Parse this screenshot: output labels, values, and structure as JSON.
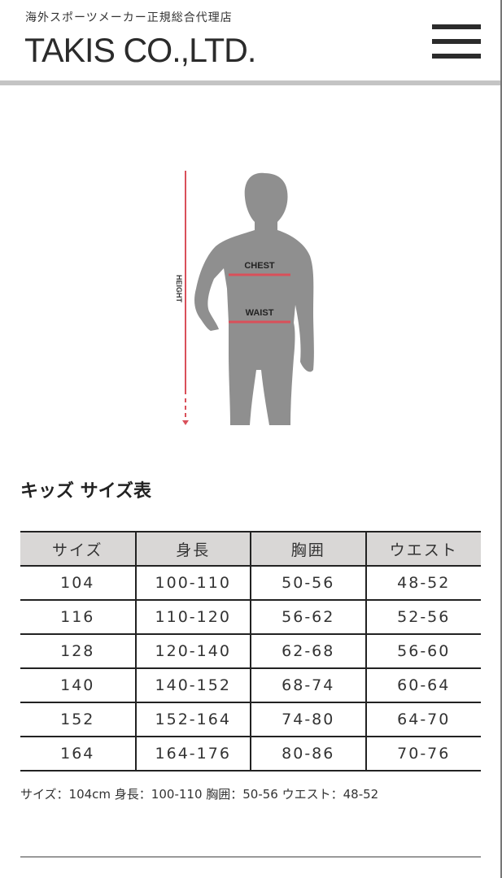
{
  "header": {
    "tagline": "海外スポーツメーカー正規総合代理店",
    "logo": "TAKIS CO.,LTD.",
    "menu_icon": "hamburger-icon"
  },
  "figure": {
    "height_label": "HEIGHT",
    "chest_label": "CHEST",
    "waist_label": "WAIST",
    "accent_color": "#d9505a"
  },
  "section": {
    "title": "キッズ サイズ表"
  },
  "size_table": {
    "headers": [
      "サイズ",
      "身長",
      "胸囲",
      "ウエスト"
    ],
    "rows": [
      [
        "104",
        "100-110",
        "50-56",
        "48-52"
      ],
      [
        "116",
        "110-120",
        "56-62",
        "52-56"
      ],
      [
        "128",
        "120-140",
        "62-68",
        "56-60"
      ],
      [
        "140",
        "140-152",
        "68-74",
        "60-64"
      ],
      [
        "152",
        "152-164",
        "74-80",
        "64-70"
      ],
      [
        "164",
        "164-176",
        "80-86",
        "70-76"
      ]
    ]
  },
  "note": "サイズ：104cm 身長：100-110 胸囲：50-56 ウエスト：48-52"
}
